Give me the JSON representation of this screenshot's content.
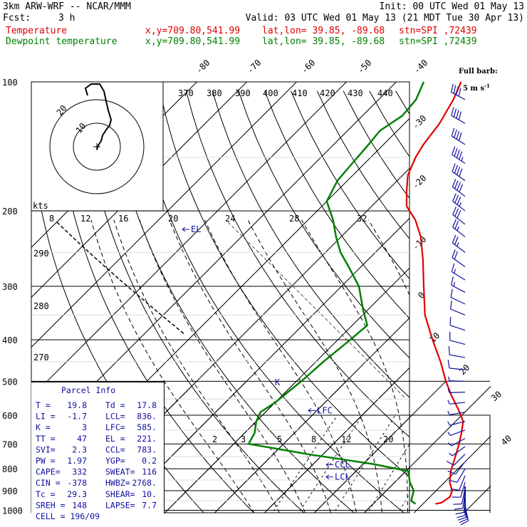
{
  "header": {
    "model": "3km ARW-WRF -- NCAR/MMM",
    "init": "Init: 00 UTC Wed 01 May 13",
    "fcst_label": "Fcst:",
    "fcst_value": "3 h",
    "valid": "Valid: 03 UTC Wed 01 May 13 (21 MDT Tue 30 Apr 13)",
    "temp_label": "Temperature",
    "dew_label": "Dewpoint temperature",
    "xy": "x,y=709.80,541.99",
    "latlon": "lat,lon= 39.85, -89.68",
    "stn": "stn=SPI ,72439"
  },
  "colors": {
    "temperature": "#e00000",
    "dewpoint": "#008000",
    "panel": "#1010a0"
  },
  "barb_label": {
    "line1": "Full barb:",
    "line2": "5 m s",
    "exp": "-1"
  },
  "kts_label": "kts",
  "chart_data": {
    "type": "line",
    "title": "",
    "x_axis": "temperature (°C), skewed",
    "y_axis": "pressure (hPa), log scale",
    "pressure_levels": [
      100,
      200,
      300,
      400,
      500,
      600,
      700,
      800,
      900,
      1000
    ],
    "pressure_labels": [
      "100",
      "200",
      "300",
      "400",
      "500",
      "600",
      "700",
      "800",
      "900",
      "1000"
    ],
    "isotherm_labels": [
      "-80",
      "-70",
      "-60",
      "-50",
      "-40",
      "-30",
      "-20",
      "-10",
      "0",
      "10",
      "20",
      "30",
      "40"
    ],
    "theta_labels": [
      "370",
      "380",
      "390",
      "400",
      "410",
      "420",
      "430",
      "440"
    ],
    "theta_left_labels": [
      "290",
      "280",
      "270"
    ],
    "mixing_ratio_labels": [
      "2",
      "3",
      "5",
      "8",
      "12",
      "20"
    ],
    "wind_speed_labels": [
      "8",
      "12",
      "16",
      "20",
      "24",
      "28",
      "32"
    ],
    "series": [
      {
        "name": "Temperature",
        "points": [
          [
            966,
            22.5
          ],
          [
            960,
            23.5
          ],
          [
            930,
            24
          ],
          [
            900,
            23.2
          ],
          [
            860,
            21
          ],
          [
            810,
            19
          ],
          [
            770,
            17.7
          ],
          [
            735,
            16.5
          ],
          [
            700,
            15.2
          ],
          [
            660,
            13.5
          ],
          [
            620,
            11.5
          ],
          [
            580,
            8
          ],
          [
            540,
            4
          ],
          [
            500,
            0
          ],
          [
            450,
            -5
          ],
          [
            400,
            -11
          ],
          [
            350,
            -17.5
          ],
          [
            300,
            -23.5
          ],
          [
            260,
            -29
          ],
          [
            230,
            -34
          ],
          [
            210,
            -38.5
          ],
          [
            195,
            -43
          ],
          [
            180,
            -46
          ],
          [
            165,
            -49
          ],
          [
            150,
            -51
          ],
          [
            140,
            -52
          ],
          [
            125,
            -53
          ],
          [
            110,
            -55
          ],
          [
            100,
            -57
          ]
        ]
      },
      {
        "name": "Dewpoint temperature",
        "points": [
          [
            966,
            18.5
          ],
          [
            950,
            17
          ],
          [
            900,
            15.5
          ],
          [
            860,
            13
          ],
          [
            810,
            10.5
          ],
          [
            780,
            2
          ],
          [
            740,
            -13
          ],
          [
            700,
            -27
          ],
          [
            660,
            -28
          ],
          [
            620,
            -30
          ],
          [
            590,
            -31
          ],
          [
            560,
            -30
          ],
          [
            500,
            -29
          ],
          [
            450,
            -28.5
          ],
          [
            400,
            -27.5
          ],
          [
            370,
            -27
          ],
          [
            340,
            -31
          ],
          [
            300,
            -36.5
          ],
          [
            270,
            -42.5
          ],
          [
            250,
            -47
          ],
          [
            230,
            -51
          ],
          [
            210,
            -55
          ],
          [
            190,
            -60
          ],
          [
            170,
            -62
          ],
          [
            155,
            -62.5
          ],
          [
            140,
            -63
          ],
          [
            130,
            -63.5
          ],
          [
            120,
            -62
          ],
          [
            110,
            -62.5
          ],
          [
            100,
            -64.5
          ]
        ]
      }
    ],
    "parcel_levels": [
      {
        "label": "EL",
        "pressure": 221
      },
      {
        "label": "LFC",
        "pressure": 585
      },
      {
        "label": "CCL",
        "pressure": 783
      },
      {
        "label": "LCL",
        "pressure": 836
      }
    ]
  },
  "parcel_info": {
    "title": "Parcel Info",
    "rows": [
      [
        "T  =",
        "19.8",
        "Td =",
        "17.8"
      ],
      [
        "LI =",
        "-1.7",
        "LCL=",
        "836."
      ],
      [
        "K  =",
        "3",
        "LFC=",
        "585."
      ],
      [
        "TT =",
        "47",
        "EL =",
        "221."
      ],
      [
        "SVI=",
        "2.3",
        "CCL=",
        "783."
      ],
      [
        "PW =",
        "1.97",
        "YGP=",
        "0.2"
      ],
      [
        "CAPE=",
        "332",
        "SWEAT=",
        "116"
      ],
      [
        "CIN =",
        "-378",
        "HWBZ=",
        "2768."
      ],
      [
        "Tc =",
        "29.3",
        "SHEAR=",
        "10."
      ],
      [
        "SREH =",
        "148",
        "LAPSE=",
        "7.7"
      ]
    ],
    "cell": "CELL = 196/09"
  },
  "hodograph": {
    "speed_labels": [
      "10",
      "20"
    ]
  }
}
